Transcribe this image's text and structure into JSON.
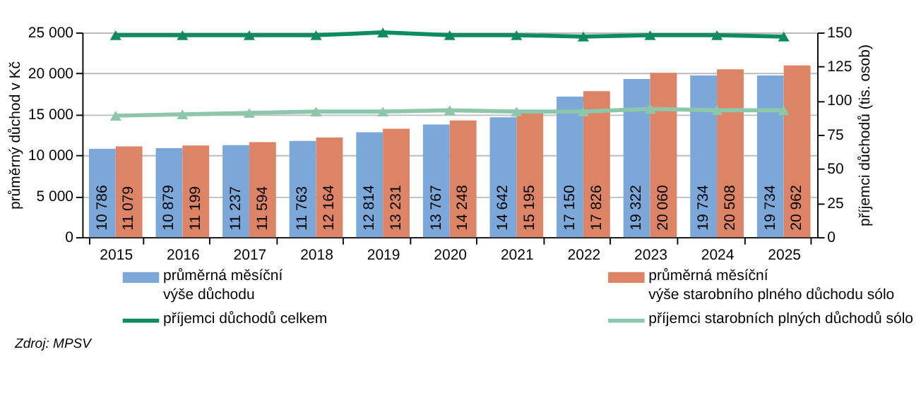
{
  "chart_data": {
    "type": "bar",
    "categories": [
      "2015",
      "2016",
      "2017",
      "2018",
      "2019",
      "2020",
      "2021",
      "2022",
      "2023",
      "2024",
      "2025"
    ],
    "ylabel": "průměrný důchod v Kč",
    "y2label": "příjemci důchodů (tis. osob)",
    "ylim": [
      0,
      25000
    ],
    "yticks": [
      0,
      {
        "value": 5000,
        "label": "5 000"
      },
      {
        "value": 10000,
        "label": "10 000"
      },
      {
        "value": 15000,
        "label": "15 000"
      },
      {
        "value": 20000,
        "label": "20 000"
      },
      {
        "value": 25000,
        "label": "25 000"
      }
    ],
    "y2lim": [
      0,
      150
    ],
    "y2ticks": [
      0,
      25,
      50,
      75,
      100,
      125,
      150
    ],
    "grid": "y",
    "legend": "bottom",
    "marker": "triangle",
    "series": [
      {
        "name": "průměrná měsíční\nvýše důchodu",
        "color": "#7ba7d9",
        "values": [
          10786,
          10879,
          11237,
          11763,
          12814,
          13767,
          14642,
          17150,
          19322,
          19734,
          19734
        ],
        "value_labels": [
          "10 786",
          "10 879",
          "11 237",
          "11 763",
          "12 814",
          "13 767",
          "14 642",
          "17 150",
          "19 322",
          "19 734",
          "19 734"
        ]
      },
      {
        "name": "průměrná měsíční\nvýše starobního plného důchodu sólo",
        "color": "#dd8466",
        "values": [
          11079,
          11199,
          11594,
          12164,
          13231,
          14248,
          15195,
          17826,
          20060,
          20508,
          20962
        ],
        "value_labels": [
          "11 079",
          "11 199",
          "11 594",
          "12 164",
          "13 231",
          "14 248",
          "15 195",
          "17 826",
          "20 060",
          "20 508",
          "20 962"
        ]
      },
      {
        "name": "příjemci důchodů celkem",
        "type": "line",
        "axis": "y2",
        "color": "#0f8c5f",
        "values": [
          148,
          148,
          148,
          148,
          150,
          148,
          148,
          147,
          148,
          148,
          147
        ]
      },
      {
        "name": "příjemci starobních plných důchodů sólo",
        "type": "line",
        "axis": "y2",
        "color": "#8cc7ab",
        "values": [
          89,
          90,
          91,
          92,
          92,
          93,
          92,
          92,
          94,
          93,
          93
        ]
      }
    ],
    "annotations": [
      "Zdroj: MPSV"
    ]
  }
}
